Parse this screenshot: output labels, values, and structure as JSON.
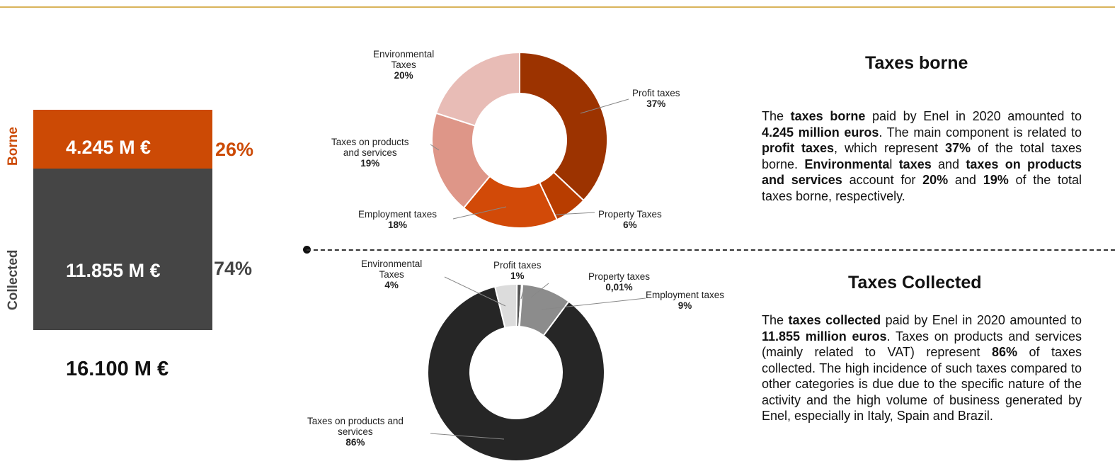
{
  "left_panel": {
    "borne_label": "Borne",
    "collected_label": "Collected",
    "borne_value": "4.245 M €",
    "collected_value": "11.855 M €",
    "borne_pct": "26%",
    "collected_pct": "74%",
    "total": "16.100 M €",
    "colors": {
      "borne": "#cc4a05",
      "collected": "#454545"
    }
  },
  "chart_data": [
    {
      "type": "pie",
      "subtype": "donut",
      "slices": [
        {
          "name": "Profit taxes",
          "value": 37,
          "label": "37%",
          "color": "#9c3300"
        },
        {
          "name": "Property Taxes",
          "value": 6,
          "label": "6%",
          "color": "#b83d00"
        },
        {
          "name": "Employment taxes",
          "value": 18,
          "label": "18%",
          "color": "#d24a08"
        },
        {
          "name": "Taxes on products and services",
          "value": 19,
          "label": "19%",
          "color": "#de9688"
        },
        {
          "name": "Environmental Taxes",
          "value": 20,
          "label": "20%",
          "color": "#e8bcb6"
        }
      ]
    },
    {
      "type": "pie",
      "subtype": "donut",
      "slices": [
        {
          "name": "Profit taxes",
          "value": 1,
          "label": "1%",
          "color": "#555555"
        },
        {
          "name": "Property taxes",
          "value": 0.01,
          "label": "0,01%",
          "color": "#777777"
        },
        {
          "name": "Employment taxes",
          "value": 9,
          "label": "9%",
          "color": "#8c8c8c"
        },
        {
          "name": "Taxes on products and services",
          "value": 86,
          "label": "86%",
          "color": "#262626"
        },
        {
          "name": "Environmental Taxes",
          "value": 4,
          "label": "4%",
          "color": "#dcdcdc"
        }
      ]
    }
  ],
  "labels_top": {
    "environmental": [
      "Environmental",
      "Taxes"
    ],
    "products": [
      "Taxes on products",
      "and services"
    ],
    "employment": "Employment taxes",
    "property": "Property Taxes",
    "profit": "Profit taxes"
  },
  "labels_bottom": {
    "environmental": [
      "Environmental",
      "Taxes"
    ],
    "profit": "Profit taxes",
    "property": "Property taxes",
    "employment": "Employment taxes",
    "products": [
      "Taxes on products and",
      "services"
    ]
  },
  "borne_section": {
    "heading": "Taxes borne",
    "p1": "The ",
    "b1": "taxes borne",
    "p2": " paid by Enel in 2020 amounted to ",
    "b2": "4.245 million euros",
    "p3": ". The main component is related to ",
    "b3": "profit taxes",
    "p4": ", which represent ",
    "b4": "37%",
    "p5": " of the total taxes borne. ",
    "b5": "Environmenta",
    "p6": "l ",
    "b6": "taxes",
    "p7": " and ",
    "b7": "taxes on products and services",
    "p8": " account for ",
    "b8": "20%",
    "p9": " and ",
    "b9": "19%",
    "p10": " of the total taxes borne, respectively."
  },
  "collected_section": {
    "heading": "Taxes Collected",
    "p1": "The ",
    "b1": "taxes collected",
    "p2": " paid by Enel in 2020 amounted to ",
    "b2": "11.855 million euros",
    "p3": ". Taxes on products and services (mainly related to VAT) represent ",
    "b3": "86%",
    "p4": " of taxes collected. The high incidence of such taxes compared to other categories is due due to the specific nature of the activity and the high volume of business generated by Enel, especially in Italy, Spain and Brazil."
  }
}
